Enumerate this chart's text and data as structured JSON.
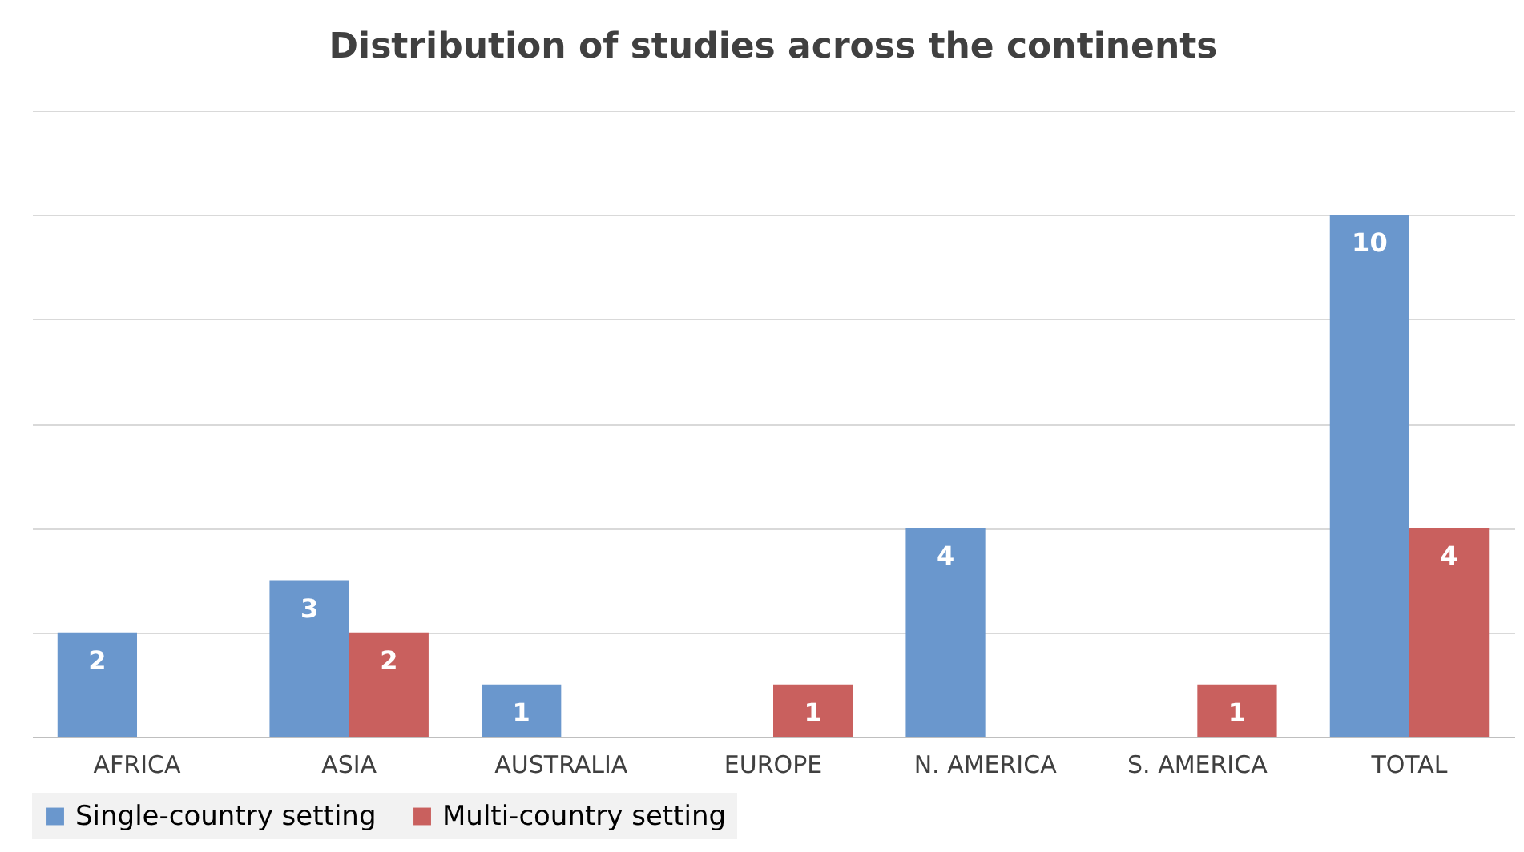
{
  "chart_data": {
    "type": "bar",
    "title": "Distribution of studies across the continents",
    "categories": [
      "AFRICA",
      "ASIA",
      "AUSTRALIA",
      "EUROPE",
      "N.  AMERICA",
      "S. AMERICA",
      "TOTAL"
    ],
    "series": [
      {
        "name": "Single-country setting",
        "color": "#6a97cd",
        "values": [
          2,
          3,
          1,
          null,
          4,
          null,
          10
        ]
      },
      {
        "name": "Multi-country setting",
        "color": "#c9605e",
        "values": [
          null,
          2,
          null,
          1,
          null,
          1,
          4
        ]
      }
    ],
    "ylim": [
      0,
      12
    ],
    "yticks": [
      {
        "value": 0,
        "label": null
      },
      {
        "value": 2,
        "label": null
      },
      {
        "value": 4,
        "label": null
      },
      {
        "value": 6,
        "label": null
      },
      {
        "value": 8,
        "label": null
      },
      {
        "value": 10,
        "label": null
      },
      {
        "value": 12,
        "label": null
      }
    ],
    "tick_labels": "x",
    "grid": "y",
    "legend": "bottom",
    "data_labels": true
  }
}
